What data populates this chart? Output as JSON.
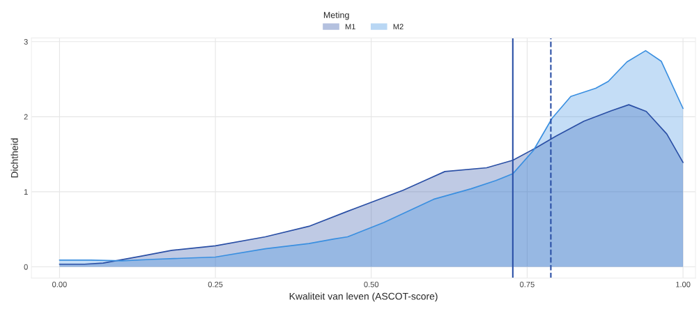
{
  "chart_data": {
    "type": "area",
    "xlabel": "Kwaliteit van leven (ASCOT-score)",
    "ylabel": "Dichtheid",
    "legend_title": "Meting",
    "legend": "top",
    "grid": true,
    "xlim": [
      -0.045,
      1.02
    ],
    "ylim": [
      -0.15,
      3.05
    ],
    "xticks": [
      {
        "value": 0,
        "label": "0.00"
      },
      {
        "value": 0.25,
        "label": "0.25"
      },
      {
        "value": 0.5,
        "label": "0.50"
      },
      {
        "value": 0.75,
        "label": "0.75"
      },
      {
        "value": 1,
        "label": "1.00"
      }
    ],
    "yticks": [
      0,
      1,
      2,
      3
    ],
    "series": [
      {
        "name": "M1",
        "color": "#2a4fa5",
        "x": [
          0,
          0.04,
          0.07,
          0.13,
          0.18,
          0.25,
          0.33,
          0.4,
          0.462,
          0.551,
          0.618,
          0.685,
          0.727,
          0.763,
          0.796,
          0.841,
          0.885,
          0.913,
          0.941,
          0.974,
          1.0
        ],
        "values": [
          0.035,
          0.035,
          0.05,
          0.14,
          0.22,
          0.28,
          0.4,
          0.54,
          0.74,
          1.02,
          1.27,
          1.32,
          1.42,
          1.58,
          1.74,
          1.94,
          2.08,
          2.16,
          2.07,
          1.77,
          1.39
        ]
      },
      {
        "name": "M2",
        "color": "#3a8fe0",
        "x": [
          0,
          0.05,
          0.1,
          0.15,
          0.25,
          0.33,
          0.4,
          0.44,
          0.462,
          0.52,
          0.6,
          0.66,
          0.7,
          0.727,
          0.76,
          0.79,
          0.82,
          0.86,
          0.88,
          0.91,
          0.94,
          0.965,
          1.0
        ],
        "values": [
          0.09,
          0.09,
          0.08,
          0.1,
          0.13,
          0.24,
          0.31,
          0.37,
          0.4,
          0.59,
          0.9,
          1.04,
          1.15,
          1.24,
          1.55,
          1.98,
          2.27,
          2.38,
          2.47,
          2.73,
          2.88,
          2.74,
          2.11
        ]
      }
    ],
    "ref_lines": [
      {
        "axis": "x",
        "value": 0.727,
        "color": "#2a4fa5",
        "line_style": "solid"
      },
      {
        "axis": "x",
        "value": 0.788,
        "color": "#2a4fa5",
        "line_style": "dashed"
      }
    ]
  }
}
